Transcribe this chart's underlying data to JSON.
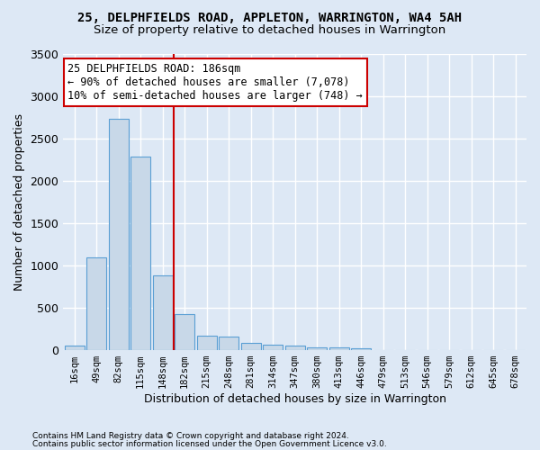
{
  "title": "25, DELPHFIELDS ROAD, APPLETON, WARRINGTON, WA4 5AH",
  "subtitle": "Size of property relative to detached houses in Warrington",
  "xlabel": "Distribution of detached houses by size in Warrington",
  "ylabel": "Number of detached properties",
  "bin_labels": [
    "16sqm",
    "49sqm",
    "82sqm",
    "115sqm",
    "148sqm",
    "182sqm",
    "215sqm",
    "248sqm",
    "281sqm",
    "314sqm",
    "347sqm",
    "380sqm",
    "413sqm",
    "446sqm",
    "479sqm",
    "513sqm",
    "546sqm",
    "579sqm",
    "612sqm",
    "645sqm",
    "678sqm"
  ],
  "bar_values": [
    55,
    1100,
    2730,
    2290,
    880,
    430,
    175,
    165,
    90,
    65,
    55,
    35,
    30,
    25,
    0,
    0,
    0,
    0,
    0,
    0,
    0
  ],
  "bar_color": "#c8d8e8",
  "bar_edge_color": "#5a9fd4",
  "vline_bin_index": 5,
  "annotation_line1": "25 DELPHFIELDS ROAD: 186sqm",
  "annotation_line2": "← 90% of detached houses are smaller (7,078)",
  "annotation_line3": "10% of semi-detached houses are larger (748) →",
  "annotation_box_color": "#ffffff",
  "annotation_box_edge": "#cc0000",
  "vline_color": "#cc0000",
  "ylim": [
    0,
    3500
  ],
  "yticks": [
    0,
    500,
    1000,
    1500,
    2000,
    2500,
    3000,
    3500
  ],
  "footer1": "Contains HM Land Registry data © Crown copyright and database right 2024.",
  "footer2": "Contains public sector information licensed under the Open Government Licence v3.0.",
  "background_color": "#dde8f5",
  "grid_color": "#ffffff",
  "title_fontsize": 10,
  "subtitle_fontsize": 9.5
}
